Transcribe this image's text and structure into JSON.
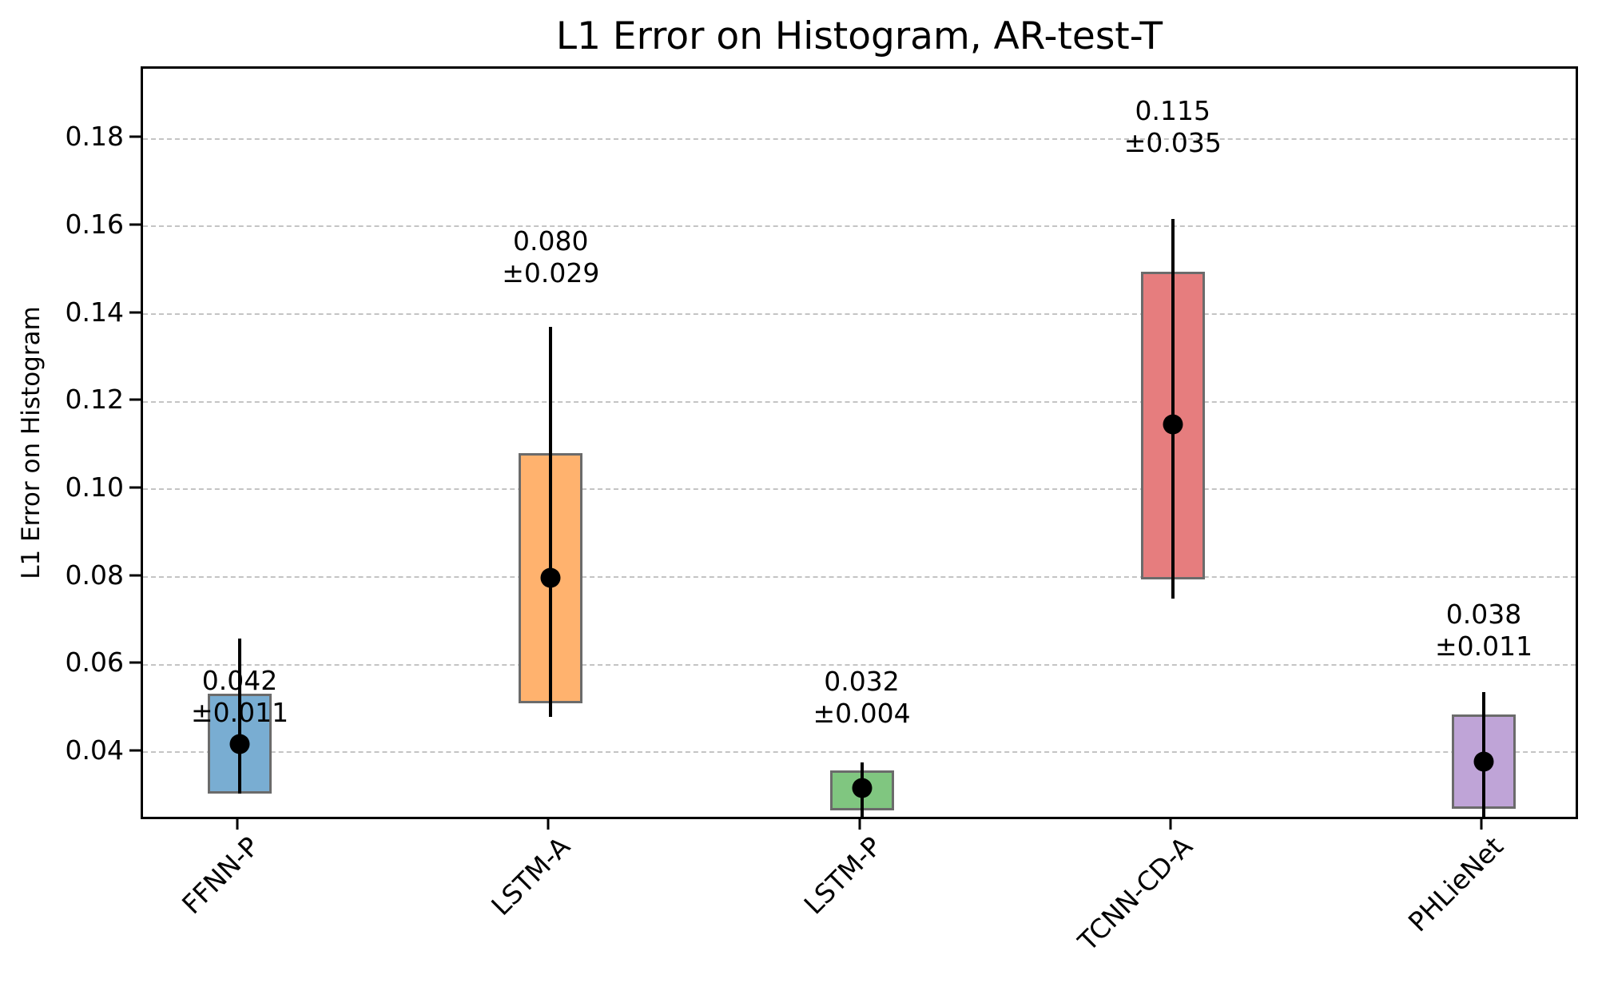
{
  "chart_data": {
    "type": "bar",
    "subtype": "floating-range bars with mean markers and error whiskers",
    "title": "L1 Error on Histogram, AR-test-T",
    "xlabel": "",
    "ylabel": "L1 Error on Histogram",
    "ylim": [
      0.0243,
      0.1961
    ],
    "yticks": [
      0.04,
      0.06,
      0.08,
      0.1,
      0.12,
      0.14,
      0.16,
      0.18
    ],
    "ytick_labels": [
      "0.04",
      "0.06",
      "0.08",
      "0.10",
      "0.12",
      "0.14",
      "0.16",
      "0.18"
    ],
    "grid": {
      "axis": "y",
      "style": "dashed",
      "color": "#c4c4c4"
    },
    "legend": null,
    "categories": [
      "FFNN-P",
      "LSTM-A",
      "LSTM-P",
      "TCNN-CD-A",
      "PHLieNet"
    ],
    "series": [
      {
        "name": "mean",
        "values": [
          0.042,
          0.08,
          0.032,
          0.115,
          0.038
        ]
      },
      {
        "name": "std",
        "values": [
          0.011,
          0.029,
          0.004,
          0.035,
          0.011
        ]
      },
      {
        "name": "box_low",
        "values": [
          0.0307,
          0.0513,
          0.0269,
          0.0796,
          0.0272
        ]
      },
      {
        "name": "box_high",
        "values": [
          0.0535,
          0.1084,
          0.036,
          0.1497,
          0.0488
        ]
      },
      {
        "name": "whisker_low",
        "values": [
          0.0307,
          0.0482,
          0.0243,
          0.0751,
          0.0243
        ]
      },
      {
        "name": "whisker_high",
        "values": [
          0.066,
          0.1372,
          0.0378,
          0.1618,
          0.0539
        ]
      }
    ],
    "bars": [
      {
        "label": "FFNN-P",
        "mean": 0.042,
        "std": 0.011,
        "box": [
          0.0307,
          0.0535
        ],
        "whisker": [
          0.0307,
          0.066
        ],
        "color": "#79add2",
        "annotation": [
          "0.042",
          "±0.011"
        ],
        "annot_y": 0.0564
      },
      {
        "label": "LSTM-A",
        "mean": 0.08,
        "std": 0.029,
        "box": [
          0.0513,
          0.1084
        ],
        "whisker": [
          0.0482,
          0.1372
        ],
        "color": "#ffb26e",
        "annotation": [
          "0.080",
          "±0.029"
        ],
        "annot_y": 0.1567
      },
      {
        "label": "LSTM-P",
        "mean": 0.032,
        "std": 0.004,
        "box": [
          0.0269,
          0.036
        ],
        "whisker": [
          0.0243,
          0.0378
        ],
        "color": "#80c680",
        "annotation": [
          "0.032",
          "±0.004"
        ],
        "annot_y": 0.0563
      },
      {
        "label": "TCNN-CD-A",
        "mean": 0.115,
        "std": 0.035,
        "box": [
          0.0796,
          0.1497
        ],
        "whisker": [
          0.0751,
          0.1618
        ],
        "color": "#e67d7e",
        "annotation": [
          "0.115",
          "±0.035"
        ],
        "annot_y": 0.1864
      },
      {
        "label": "PHLieNet",
        "mean": 0.038,
        "std": 0.011,
        "box": [
          0.0272,
          0.0488
        ],
        "whisker": [
          0.0243,
          0.0539
        ],
        "color": "#bfa4d7",
        "annotation": [
          "0.038",
          "±0.011"
        ],
        "annot_y": 0.0715
      }
    ],
    "edge_color": "#6b6b6b",
    "marker_color": "#000000"
  }
}
